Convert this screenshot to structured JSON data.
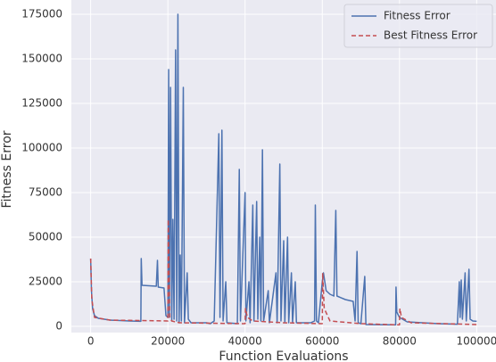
{
  "chart_data": {
    "type": "line",
    "xlabel": "Function Evaluations",
    "ylabel": "Fitness Error",
    "xlim": [
      -5000,
      105000
    ],
    "ylim": [
      -3500,
      183000
    ],
    "xticks": [
      0,
      20000,
      40000,
      60000,
      80000,
      100000
    ],
    "yticks": [
      0,
      25000,
      50000,
      75000,
      100000,
      125000,
      150000,
      175000
    ],
    "grid": true,
    "legend": "upper right",
    "series": [
      {
        "name": "Fitness Error",
        "color": "#4c72b0",
        "dash": false,
        "x": [
          0,
          200,
          500,
          1000,
          2000,
          5000,
          10000,
          13000,
          13100,
          13300,
          17000,
          17300,
          17500,
          19000,
          19500,
          20000,
          20200,
          20400,
          20700,
          21000,
          21300,
          21600,
          22000,
          22300,
          22600,
          22900,
          23200,
          23500,
          24000,
          24300,
          25000,
          25300,
          26000,
          30000,
          31000,
          32000,
          33200,
          33500,
          34000,
          34300,
          35000,
          35300,
          38000,
          38500,
          38800,
          40000,
          40200,
          41000,
          41300,
          42000,
          42300,
          43000,
          43300,
          43800,
          44100,
          44500,
          44800,
          46000,
          46300,
          48000,
          48300,
          49000,
          49300,
          50000,
          50300,
          51000,
          51300,
          52000,
          52300,
          53000,
          53300,
          57000,
          58000,
          58200,
          58500,
          59000,
          60000,
          60300,
          61000,
          62000,
          63000,
          63500,
          63800,
          66000,
          68000,
          68500,
          69000,
          69300,
          70000,
          71000,
          71300,
          79000,
          79100,
          79300,
          80000,
          82000,
          90000,
          95000,
          95500,
          95700,
          96000,
          96300,
          97000,
          97300,
          98000,
          98300,
          99000,
          100000
        ],
        "values": [
          38000,
          20000,
          10000,
          6000,
          4500,
          3500,
          3000,
          2800,
          38000,
          23000,
          22500,
          37000,
          22000,
          21500,
          6000,
          5000,
          144000,
          5000,
          134000,
          3000,
          60000,
          4000,
          155000,
          3000,
          175000,
          2000,
          40000,
          3000,
          134000,
          2000,
          30000,
          4000,
          2000,
          2000,
          1500,
          3000,
          108000,
          5000,
          110000,
          3000,
          25000,
          2000,
          1500,
          88000,
          3000,
          75000,
          3000,
          25000,
          2000,
          68000,
          3000,
          70000,
          4000,
          50000,
          3000,
          99000,
          3000,
          20000,
          2000,
          30000,
          2000,
          91000,
          3000,
          48000,
          2000,
          50000,
          2000,
          30000,
          2000,
          25000,
          2000,
          2000,
          3000,
          68000,
          3000,
          2000,
          25000,
          30000,
          20000,
          18000,
          17000,
          65000,
          17000,
          15000,
          14000,
          3000,
          42000,
          2000,
          1500,
          28000,
          1000,
          800,
          22000,
          8000,
          5000,
          2500,
          1500,
          1200,
          25000,
          5000,
          26000,
          4000,
          30000,
          3000,
          32000,
          4000,
          3000,
          2800
        ]
      },
      {
        "name": "Best Fitness Error",
        "color": "#c44e52",
        "dash": true,
        "x": [
          0,
          300,
          1000,
          5000,
          20000,
          20100,
          20500,
          21000,
          23000,
          40000,
          40100,
          40600,
          42000,
          50000,
          60000,
          60100,
          60500,
          62000,
          70000,
          80000,
          80100,
          80500,
          83000,
          100000
        ],
        "values": [
          38000,
          15000,
          5000,
          3500,
          3000,
          60000,
          5000,
          3000,
          2000,
          1500,
          10000,
          5000,
          3000,
          2000,
          1500,
          30000,
          10000,
          3000,
          1500,
          800,
          10000,
          5000,
          2000,
          1000
        ]
      }
    ]
  }
}
